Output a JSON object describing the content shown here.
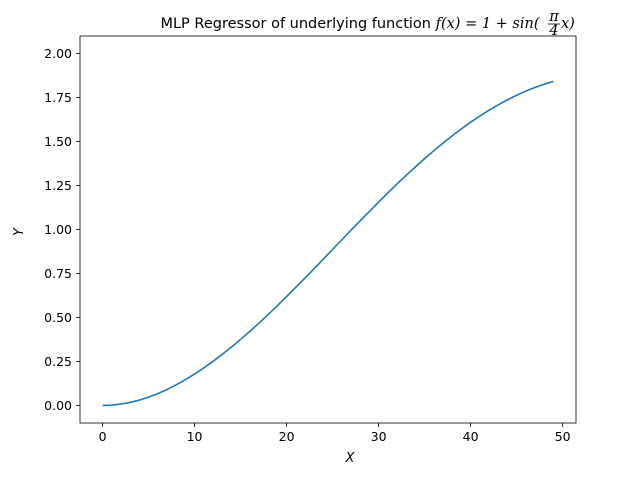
{
  "chart_data": {
    "type": "line",
    "title_prefix": "MLP Regressor of underlying function ",
    "title_math": {
      "lhs": "f(x) = 1 + sin(",
      "frac_num": "π",
      "frac_den": "4",
      "rhs": "x)"
    },
    "xlabel": "X",
    "ylabel": "Y",
    "xlim": [
      -2.45,
      51.45
    ],
    "ylim": [
      -0.1,
      2.1
    ],
    "x_ticks": [
      0,
      10,
      20,
      30,
      40,
      50
    ],
    "x_tick_labels": [
      "0",
      "10",
      "20",
      "30",
      "40",
      "50"
    ],
    "y_ticks": [
      0,
      0.25,
      0.5,
      0.75,
      1.0,
      1.25,
      1.5,
      1.75,
      2.0
    ],
    "y_tick_labels": [
      "0.00",
      "0.25",
      "0.50",
      "0.75",
      "1.00",
      "1.25",
      "1.50",
      "1.75",
      "2.00"
    ],
    "grid": false,
    "series": [
      {
        "color": "#1f77b4",
        "x": [
          0,
          1,
          2,
          3,
          4,
          5,
          6,
          7,
          8,
          9,
          10,
          11,
          12,
          13,
          14,
          15,
          16,
          17,
          18,
          19,
          20,
          21,
          22,
          23,
          24,
          25,
          26,
          27,
          28,
          29,
          30,
          31,
          32,
          33,
          34,
          35,
          36,
          37,
          38,
          39,
          40,
          41,
          42,
          43,
          44,
          45,
          46,
          47,
          48,
          49
        ],
        "y": [
          0.0,
          0.001,
          0.008,
          0.017,
          0.03,
          0.047,
          0.067,
          0.09,
          0.117,
          0.146,
          0.178,
          0.213,
          0.25,
          0.29,
          0.331,
          0.375,
          0.421,
          0.468,
          0.517,
          0.567,
          0.619,
          0.671,
          0.724,
          0.778,
          0.832,
          0.887,
          0.941,
          0.996,
          1.05,
          1.103,
          1.156,
          1.208,
          1.259,
          1.308,
          1.356,
          1.403,
          1.448,
          1.491,
          1.533,
          1.572,
          1.61,
          1.645,
          1.678,
          1.709,
          1.737,
          1.763,
          1.787,
          1.808,
          1.826,
          1.842
        ]
      }
    ]
  }
}
